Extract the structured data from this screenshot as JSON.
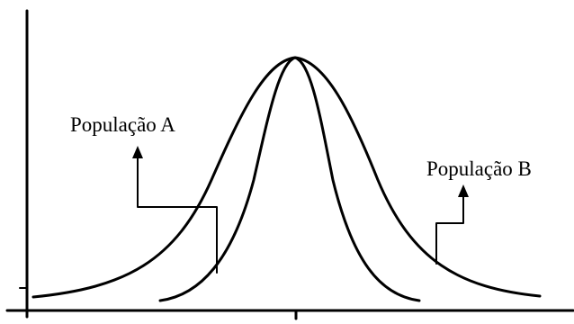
{
  "diagram": {
    "label_a": "População A",
    "label_b": "População B",
    "colors": {
      "background": "#ffffff",
      "ink": "#000000"
    }
  }
}
